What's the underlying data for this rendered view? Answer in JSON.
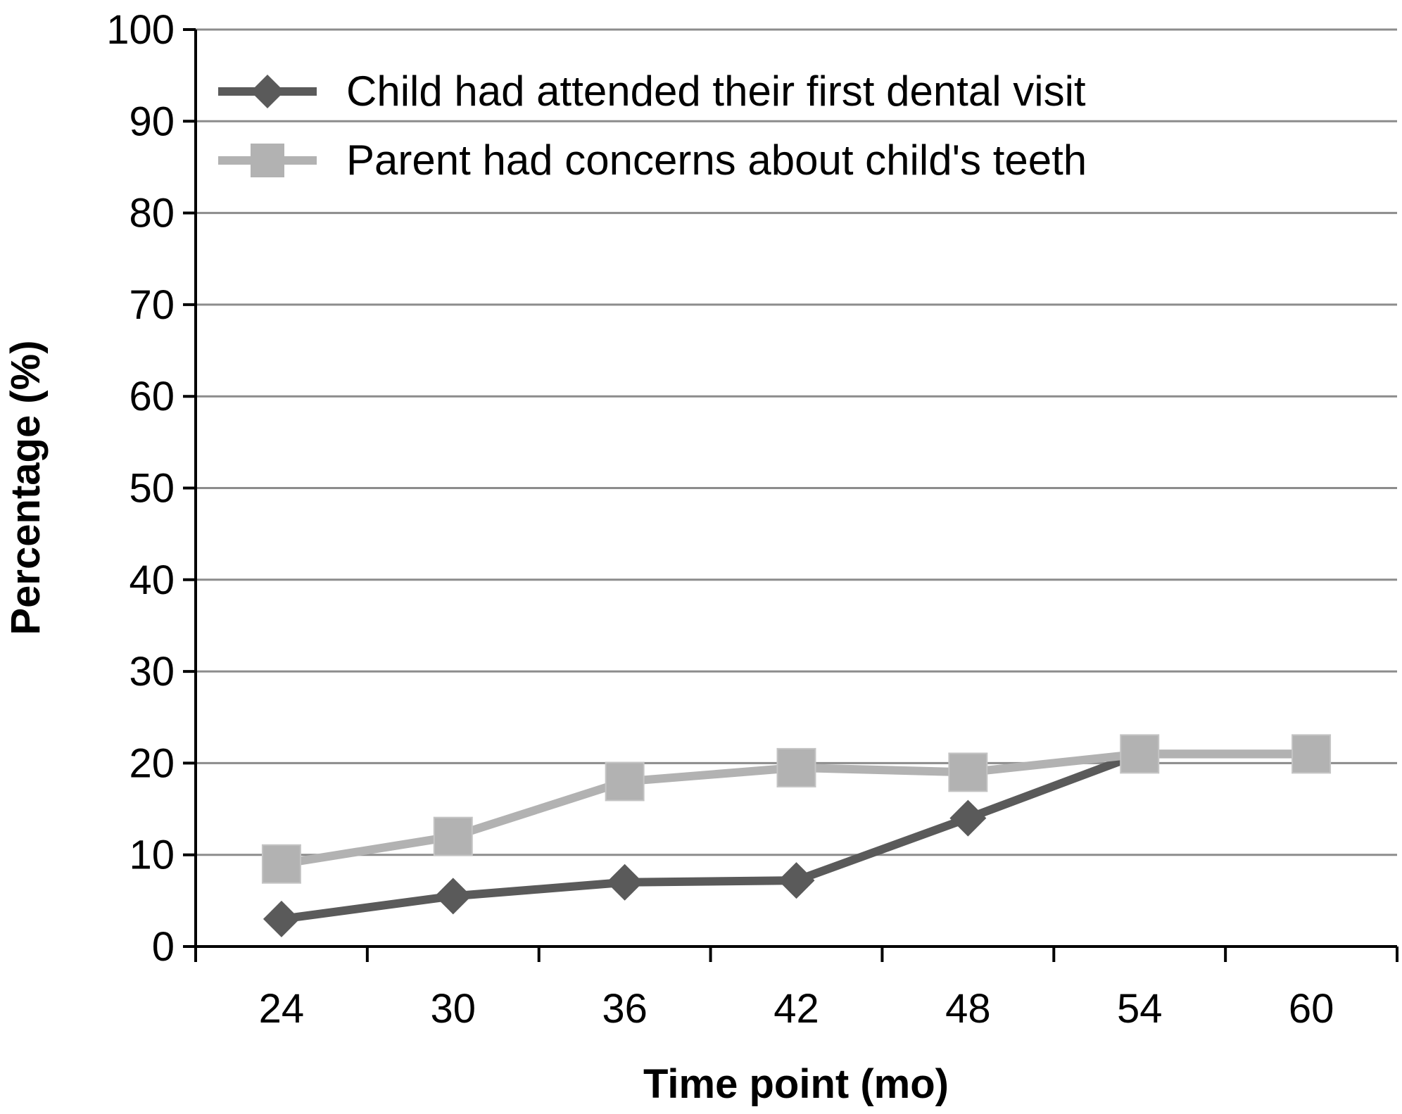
{
  "chart_data": {
    "type": "line",
    "title": "",
    "xlabel": "Time point (mo)",
    "ylabel": "Percentage (%)",
    "categories": [
      "24",
      "30",
      "36",
      "42",
      "48",
      "54",
      "60"
    ],
    "ylim": [
      0,
      100
    ],
    "yticks": [
      0,
      10,
      20,
      30,
      40,
      50,
      60,
      70,
      80,
      90,
      100
    ],
    "grid": true,
    "legend_position": "top-left",
    "series": [
      {
        "name": "Child had attended their first dental visit",
        "values": [
          3,
          5.5,
          7,
          7.2,
          14,
          21,
          21
        ],
        "color": "#5a5a5a",
        "marker": "diamond"
      },
      {
        "name": "Parent had concerns about child's teeth",
        "values": [
          9,
          12,
          18,
          19.5,
          19,
          21,
          21
        ],
        "color": "#b2b2b2",
        "marker": "square"
      }
    ]
  }
}
